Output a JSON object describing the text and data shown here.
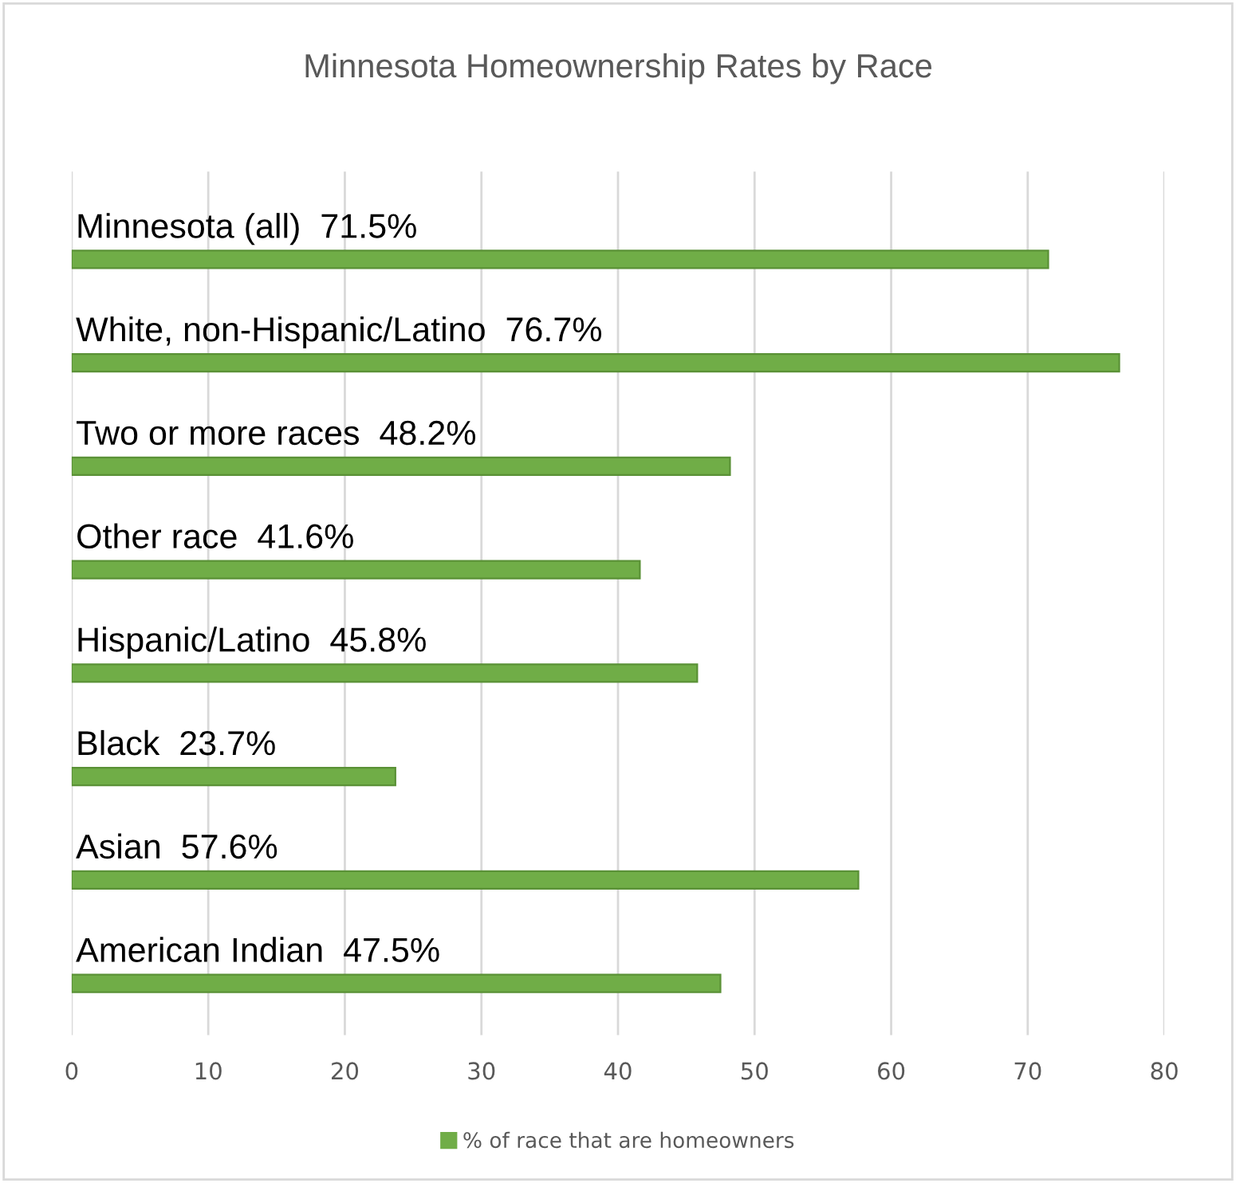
{
  "chart_data": {
    "type": "bar",
    "orientation": "horizontal",
    "title": "Minnesota Homeownership Rates by Race",
    "categories": [
      "Minnesota (all)",
      "White, non-Hispanic/Latino",
      "Two or more races",
      "Other race",
      "Hispanic/Latino",
      "Black",
      "Asian",
      "American Indian"
    ],
    "series": [
      {
        "name": "% of race that are homeowners",
        "color": "#70ad47",
        "values": [
          71.5,
          76.7,
          48.2,
          41.6,
          45.8,
          23.7,
          57.6,
          47.5
        ],
        "value_labels": [
          "71.5%",
          "76.7%",
          "48.2%",
          "41.6%",
          "45.8%",
          "23.7%",
          "57.6%",
          "47.5%"
        ]
      }
    ],
    "xlim": [
      0,
      80
    ],
    "xticks": [
      0,
      10,
      20,
      30,
      40,
      50,
      60,
      70,
      80
    ],
    "grid": "x",
    "legend": "bottom",
    "tick_labels": "x"
  }
}
